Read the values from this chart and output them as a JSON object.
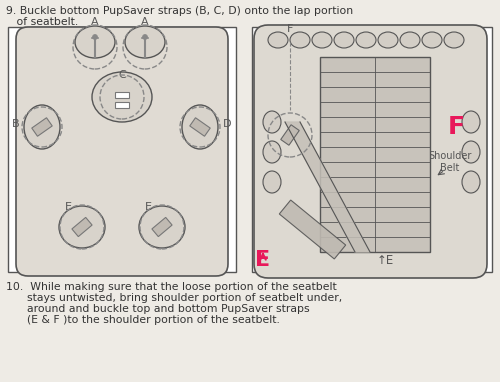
{
  "bg_color": "#eeebe5",
  "line_color": "#555555",
  "dashed_color": "#888888",
  "fill_color": "#ddd8d0",
  "white": "#ffffff",
  "title9": "9. Buckle bottom PupSaver straps (B, C, D) onto the lap portion",
  "title9b": "   of seatbelt.",
  "title10": "10.  While making sure that the loose portion of the seatbelt",
  "title10b": "      stays untwisted, bring shoulder portion of seatbelt under,",
  "title10c": "      around and buckle top and bottom PupSaver straps",
  "title10d": "      (E & F )to the shoulder portion of the seatbelt.",
  "highlight_pink": "#e8185a",
  "label_fontsize": 8.0,
  "instruction_fontsize": 7.8
}
